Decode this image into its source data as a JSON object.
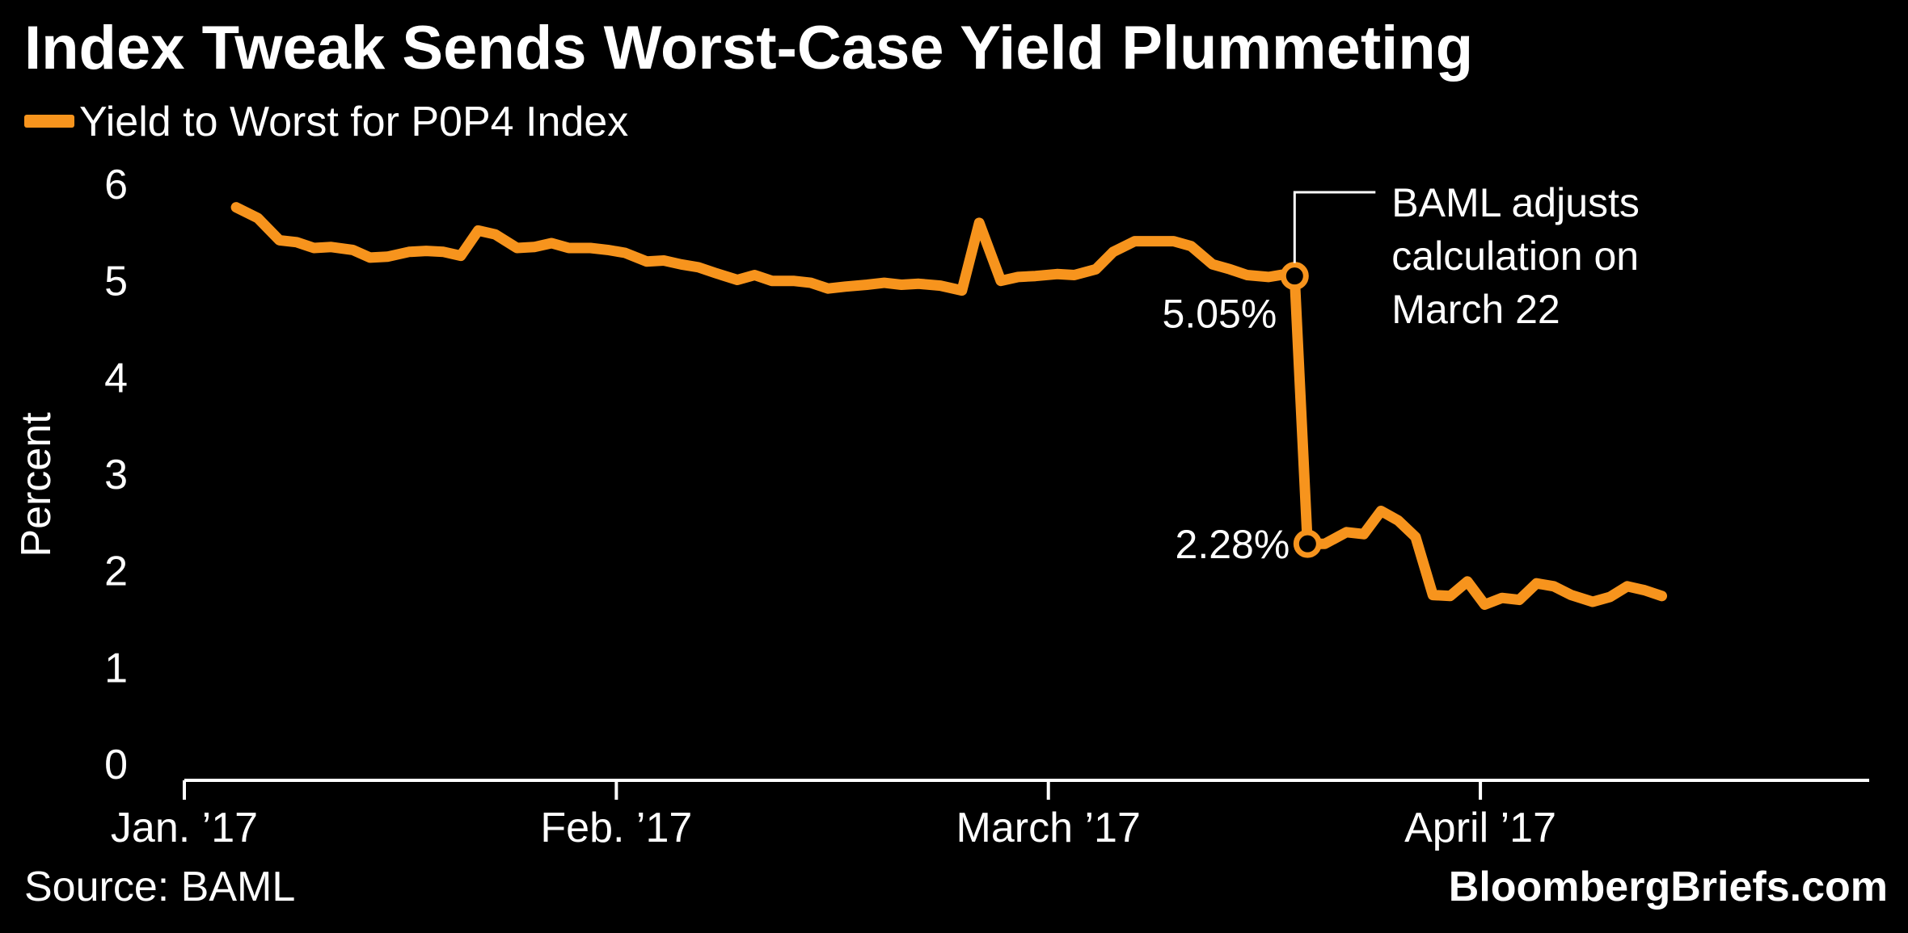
{
  "title": "Index Tweak Sends Worst-Case Yield Plummeting",
  "source": "Source: BAML",
  "brand": "BloombergBriefs.com",
  "colors": {
    "background": "#000000",
    "series": "#F7941D",
    "text": "#ffffff",
    "axis": "#ffffff"
  },
  "chart_data": {
    "type": "line",
    "ylabel": "Percent",
    "ylim": [
      0,
      6
    ],
    "yticks": [
      "0",
      "1",
      "2",
      "3",
      "4",
      "5",
      "6"
    ],
    "xlim": [
      0,
      3.9
    ],
    "xticks": [
      {
        "label": "Jan. ’17",
        "value": 0
      },
      {
        "label": "Feb. ’17",
        "value": 1
      },
      {
        "label": "March ’17",
        "value": 2
      },
      {
        "label": "April ’17",
        "value": 3
      }
    ],
    "grid": false,
    "legend": "top-left",
    "series": [
      {
        "name": "Yield to Worst for P0P4 Index",
        "points": [
          [
            0.12,
            5.76
          ],
          [
            0.17,
            5.65
          ],
          [
            0.22,
            5.42
          ],
          [
            0.26,
            5.4
          ],
          [
            0.3,
            5.34
          ],
          [
            0.34,
            5.35
          ],
          [
            0.39,
            5.32
          ],
          [
            0.43,
            5.24
          ],
          [
            0.47,
            5.25
          ],
          [
            0.52,
            5.3
          ],
          [
            0.56,
            5.31
          ],
          [
            0.6,
            5.3
          ],
          [
            0.64,
            5.26
          ],
          [
            0.68,
            5.52
          ],
          [
            0.72,
            5.48
          ],
          [
            0.77,
            5.34
          ],
          [
            0.81,
            5.35
          ],
          [
            0.85,
            5.39
          ],
          [
            0.89,
            5.34
          ],
          [
            0.94,
            5.34
          ],
          [
            0.98,
            5.32
          ],
          [
            1.02,
            5.29
          ],
          [
            1.07,
            5.2
          ],
          [
            1.11,
            5.21
          ],
          [
            1.15,
            5.17
          ],
          [
            1.19,
            5.14
          ],
          [
            1.23,
            5.08
          ],
          [
            1.28,
            5.01
          ],
          [
            1.32,
            5.06
          ],
          [
            1.36,
            5.0
          ],
          [
            1.41,
            5.0
          ],
          [
            1.45,
            4.98
          ],
          [
            1.49,
            4.92
          ],
          [
            1.53,
            4.94
          ],
          [
            1.58,
            4.96
          ],
          [
            1.62,
            4.98
          ],
          [
            1.66,
            4.96
          ],
          [
            1.7,
            4.97
          ],
          [
            1.75,
            4.95
          ],
          [
            1.8,
            4.9
          ],
          [
            1.84,
            5.6
          ],
          [
            1.89,
            5.0
          ],
          [
            1.93,
            5.04
          ],
          [
            1.97,
            5.05
          ],
          [
            2.02,
            5.07
          ],
          [
            2.06,
            5.06
          ],
          [
            2.11,
            5.12
          ],
          [
            2.15,
            5.3
          ],
          [
            2.2,
            5.41
          ],
          [
            2.24,
            5.41
          ],
          [
            2.29,
            5.41
          ],
          [
            2.33,
            5.36
          ],
          [
            2.38,
            5.17
          ],
          [
            2.42,
            5.12
          ],
          [
            2.46,
            5.06
          ],
          [
            2.51,
            5.04
          ],
          [
            2.55,
            5.07
          ],
          [
            2.57,
            5.05
          ],
          [
            2.6,
            2.28
          ],
          [
            2.64,
            2.28
          ],
          [
            2.69,
            2.4
          ],
          [
            2.73,
            2.38
          ],
          [
            2.77,
            2.62
          ],
          [
            2.81,
            2.52
          ],
          [
            2.85,
            2.35
          ],
          [
            2.89,
            1.75
          ],
          [
            2.93,
            1.74
          ],
          [
            2.97,
            1.89
          ],
          [
            3.01,
            1.65
          ],
          [
            3.05,
            1.72
          ],
          [
            3.09,
            1.7
          ],
          [
            3.13,
            1.87
          ],
          [
            3.17,
            1.84
          ],
          [
            3.21,
            1.75
          ],
          [
            3.26,
            1.68
          ],
          [
            3.3,
            1.73
          ],
          [
            3.34,
            1.84
          ],
          [
            3.38,
            1.8
          ],
          [
            3.42,
            1.74
          ]
        ]
      }
    ],
    "markers": [
      {
        "x": 2.57,
        "y": 5.05,
        "label": "5.05%"
      },
      {
        "x": 2.6,
        "y": 2.28,
        "label": "2.28%"
      }
    ],
    "annotations": [
      {
        "lines": [
          "BAML adjusts",
          "calculation on",
          "March 22"
        ],
        "x": 2.57
      }
    ]
  }
}
